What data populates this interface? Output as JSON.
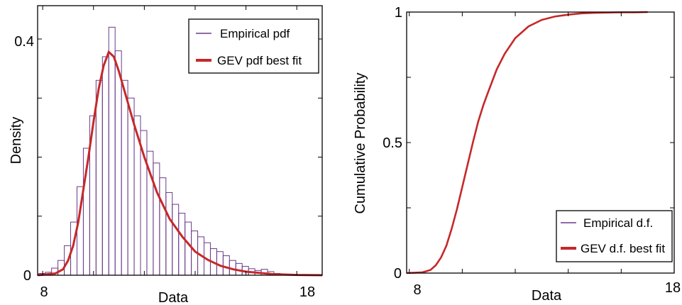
{
  "chart_data": [
    {
      "type": "bar",
      "title": "",
      "xlabel": "Data",
      "ylabel": "Density",
      "xlim": [
        7.8,
        19.0
      ],
      "ylim": [
        0,
        0.45
      ],
      "xticks": [
        "8",
        "18"
      ],
      "yticks": [
        "0",
        "0.4"
      ],
      "bin_start": 7.85,
      "bin_width": 0.25,
      "histogram": [
        0.003,
        0.005,
        0.012,
        0.025,
        0.05,
        0.09,
        0.15,
        0.215,
        0.27,
        0.33,
        0.37,
        0.42,
        0.38,
        0.33,
        0.3,
        0.27,
        0.245,
        0.21,
        0.19,
        0.165,
        0.14,
        0.12,
        0.105,
        0.09,
        0.075,
        0.065,
        0.055,
        0.045,
        0.04,
        0.033,
        0.025,
        0.02,
        0.015,
        0.011,
        0.008,
        0.01,
        0.006,
        0.003,
        0.002,
        0.001,
        0.001,
        0.001,
        0.0005,
        0.0005
      ],
      "fit_curve": {
        "x": [
          7.8,
          8.5,
          8.8,
          9.0,
          9.2,
          9.4,
          9.6,
          9.8,
          10.0,
          10.2,
          10.4,
          10.6,
          10.8,
          11.0,
          11.3,
          11.6,
          12.0,
          12.5,
          13.0,
          13.5,
          14.0,
          14.5,
          15.0,
          15.5,
          16.0,
          17.0,
          18.0,
          19.0
        ],
        "y": [
          0.0,
          0.003,
          0.01,
          0.025,
          0.05,
          0.09,
          0.145,
          0.2,
          0.26,
          0.315,
          0.355,
          0.378,
          0.37,
          0.345,
          0.3,
          0.255,
          0.2,
          0.14,
          0.095,
          0.065,
          0.04,
          0.026,
          0.016,
          0.01,
          0.006,
          0.002,
          0.0005,
          0.0
        ]
      },
      "legend": {
        "position": "top-right",
        "entries": [
          "Empirical pdf",
          "GEV pdf best fit"
        ]
      },
      "colors": {
        "histogram": "#6a3a8a",
        "fit": "#c62828"
      }
    },
    {
      "type": "line",
      "title": "",
      "xlabel": "Data",
      "ylabel": "Cumulative  Probability",
      "xlim": [
        7.9,
        18.0
      ],
      "ylim": [
        0,
        1
      ],
      "xticks": [
        "8",
        "18"
      ],
      "yticks": [
        "0",
        "0.5",
        "1"
      ],
      "series": [
        {
          "name": "Empirical d.f.",
          "x": [
            7.9,
            8.5,
            8.8,
            9.0,
            9.2,
            9.4,
            9.6,
            9.8,
            10.0,
            10.2,
            10.4,
            10.6,
            10.8,
            11.0,
            11.3,
            11.6,
            12.0,
            12.5,
            13.0,
            13.5,
            14.0,
            14.5,
            15.0,
            15.5,
            16.0,
            16.5,
            17.0
          ],
          "y": [
            0.0,
            0.003,
            0.012,
            0.03,
            0.06,
            0.105,
            0.17,
            0.245,
            0.33,
            0.415,
            0.5,
            0.58,
            0.645,
            0.7,
            0.78,
            0.84,
            0.9,
            0.945,
            0.97,
            0.983,
            0.99,
            0.995,
            0.997,
            0.998,
            0.999,
            0.999,
            1.0
          ]
        },
        {
          "name": "GEV  d.f.  best fit",
          "x": [
            7.9,
            8.5,
            8.8,
            9.0,
            9.2,
            9.4,
            9.6,
            9.8,
            10.0,
            10.2,
            10.4,
            10.6,
            10.8,
            11.0,
            11.3,
            11.6,
            12.0,
            12.5,
            13.0,
            13.5,
            14.0,
            14.5,
            15.0,
            15.5,
            16.0,
            16.5,
            17.0
          ],
          "y": [
            0.0,
            0.003,
            0.012,
            0.03,
            0.06,
            0.105,
            0.17,
            0.245,
            0.33,
            0.415,
            0.5,
            0.58,
            0.645,
            0.7,
            0.78,
            0.84,
            0.9,
            0.945,
            0.97,
            0.983,
            0.99,
            0.995,
            0.997,
            0.998,
            0.999,
            0.999,
            1.0
          ]
        }
      ],
      "legend": {
        "position": "bottom-right",
        "entries": [
          "Empirical d.f.",
          "GEV  d.f.  best fit"
        ]
      },
      "colors": {
        "empirical": "#6a3a8a",
        "fit": "#c62828"
      }
    }
  ]
}
